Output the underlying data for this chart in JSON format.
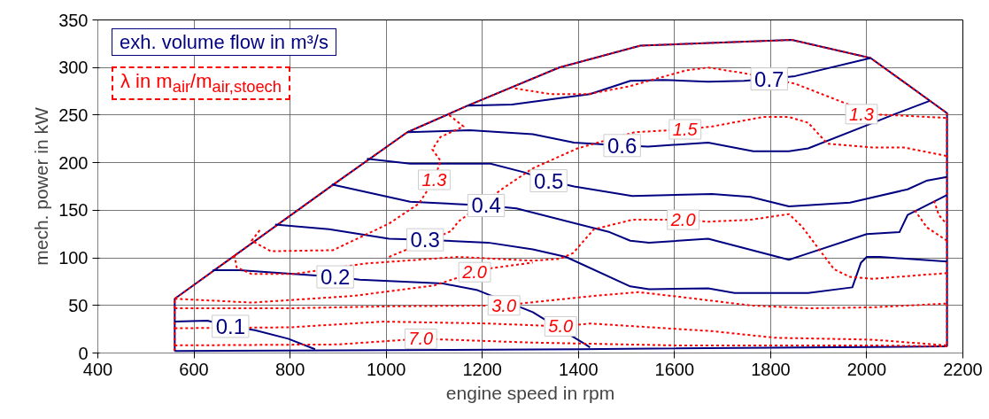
{
  "chart_data": {
    "type": "line",
    "xlabel": "engine speed in rpm",
    "ylabel": "mech. power in kW",
    "xlim": [
      400,
      2200
    ],
    "ylim": [
      0,
      350
    ],
    "xticks": [
      400,
      600,
      800,
      1000,
      1200,
      1400,
      1600,
      1800,
      2000,
      2200
    ],
    "yticks": [
      0,
      50,
      100,
      150,
      200,
      250,
      300,
      350
    ],
    "grid": true,
    "legend": "top left",
    "annotations": [
      {
        "text": "0.7",
        "x": 1797,
        "y": 288
      },
      {
        "text": "0.6",
        "x": 1491,
        "y": 218
      },
      {
        "text": "0.5",
        "x": 1338,
        "y": 181
      },
      {
        "text": "0.4",
        "x": 1208,
        "y": 155
      },
      {
        "text": "0.3",
        "x": 1081,
        "y": 119
      },
      {
        "text": "0.2",
        "x": 894,
        "y": 80
      },
      {
        "text": "0.1",
        "x": 676,
        "y": 28
      },
      {
        "text": "1.3",
        "x": 1989,
        "y": 251
      },
      {
        "text": "1.3",
        "x": 1100,
        "y": 182
      },
      {
        "text": "1.5",
        "x": 1622,
        "y": 235
      },
      {
        "text": "2.0",
        "x": 1618,
        "y": 140
      },
      {
        "text": "2.0",
        "x": 1184,
        "y": 85
      },
      {
        "text": "3.0",
        "x": 1245,
        "y": 50
      },
      {
        "text": "5.0",
        "x": 1363,
        "y": 28
      },
      {
        "text": "7.0",
        "x": 1072,
        "y": 15
      }
    ],
    "series": [
      {
        "name": "exh. volume flow in m³/s",
        "color": "#000080",
        "line_style": "solid",
        "x": [
          560,
          560,
          890,
          1044,
          1170,
          1360,
          1529,
          1844,
          2008,
          2167,
          2167
        ],
        "values": [
          2,
          57,
          177,
          232,
          260,
          300,
          323,
          329,
          310,
          252,
          7
        ]
      },
      {
        "name": "λ in m$_{air}$/m$_{air,stoech}$",
        "color": "#ff0000",
        "line_style": "dashed",
        "x": [
          560,
          560,
          890,
          1044,
          1170,
          1360,
          1529,
          1844,
          2008,
          2167,
          2167
        ],
        "values": [
          2,
          57,
          177,
          232,
          260,
          300,
          323,
          329,
          310,
          252,
          7
        ]
      },
      {
        "color": "#000080",
        "line_style": "solid",
        "x": [
          560,
          1400,
          2167
        ],
        "values": [
          2,
          4,
          7
        ]
      },
      {
        "color": "#000080",
        "line_style": "solid",
        "x": [
          1170,
          1262,
          1424,
          1508,
          1577,
          1670,
          1745,
          1797,
          1851,
          2008
        ],
        "values": [
          260,
          261,
          272,
          286,
          287,
          285,
          286,
          288,
          291,
          310
        ]
      },
      {
        "color": "#000080",
        "line_style": "solid",
        "x": [
          1044,
          1174,
          1305,
          1391,
          1491,
          1545,
          1670,
          1764,
          1838,
          1878,
          2004,
          2058,
          2131
        ],
        "values": [
          232,
          234,
          230,
          221,
          218,
          217,
          221,
          212,
          212,
          215,
          240,
          251,
          265
        ]
      },
      {
        "color": "#000080",
        "line_style": "solid",
        "x": [
          960,
          1050,
          1217,
          1286,
          1338,
          1391,
          1512,
          1678,
          1758,
          1838,
          1965,
          2085,
          2124,
          2167
        ],
        "values": [
          204,
          199,
          199,
          190,
          181,
          175,
          165,
          167,
          164,
          154,
          158,
          172,
          181,
          185
        ]
      },
      {
        "color": "#000080",
        "line_style": "solid",
        "x": [
          887,
          1050,
          1208,
          1271,
          1465,
          1508,
          1547,
          1670,
          1838,
          1868,
          2000,
          2068,
          2085,
          2167
        ],
        "values": [
          177,
          159,
          155,
          152,
          127,
          118,
          116,
          120,
          98,
          103,
          125,
          127,
          145,
          166
        ]
      },
      {
        "color": "#000080",
        "line_style": "solid",
        "x": [
          769,
          881,
          1006,
          1081,
          1212,
          1305,
          1374,
          1508,
          1547,
          1670,
          1725,
          1878,
          1970,
          1988,
          2000,
          2027,
          2167
        ],
        "values": [
          135,
          130,
          120,
          119,
          116,
          109,
          101,
          70,
          67,
          68,
          63,
          63,
          69,
          95,
          101,
          101,
          96
        ]
      },
      {
        "color": "#000080",
        "line_style": "solid",
        "x": [
          639,
          695,
          807,
          894,
          945,
          1118,
          1190,
          1305,
          1415,
          1424
        ],
        "values": [
          87,
          87,
          83,
          80,
          77,
          73,
          66,
          43,
          9,
          6
        ]
      },
      {
        "color": "#000080",
        "line_style": "solid",
        "x": [
          560,
          628,
          676,
          727,
          796,
          852
        ],
        "values": [
          33,
          34,
          28,
          24,
          15,
          4
        ]
      },
      {
        "color": "#ff0000",
        "line_style": "dashed",
        "x": [
          1268,
          1344,
          1419,
          1504,
          1624,
          1670,
          1745,
          1851,
          1978,
          1989,
          2052,
          2167
        ],
        "values": [
          278,
          272,
          272,
          280,
          297,
          300,
          294,
          283,
          258,
          251,
          250,
          247
        ]
      },
      {
        "color": "#ff0000",
        "line_style": "dashed",
        "x": [
          1131,
          1161,
          1113,
          1096,
          1113,
          1100,
          1068,
          1006,
          889,
          760,
          720,
          740
        ],
        "values": [
          250,
          238,
          227,
          214,
          202,
          182,
          157,
          136,
          108,
          107,
          118,
          131
        ]
      },
      {
        "color": "#ff0000",
        "line_style": "dashed",
        "x": [
          1006,
          1135,
          1150,
          1243,
          1305,
          1398,
          1517,
          1622,
          1678,
          1784,
          1838,
          1878,
          1918,
          2012,
          2077,
          2167
        ],
        "values": [
          101,
          128,
          138,
          173,
          194,
          215,
          232,
          235,
          238,
          248,
          248,
          242,
          220,
          216,
          216,
          207
        ]
      },
      {
        "color": "#ff0000",
        "line_style": "dashed",
        "x": [
          684,
          689,
          720,
          807,
          956,
          1150,
          1305,
          1361,
          1389,
          1432,
          1512,
          1618,
          1670,
          1758,
          1838,
          1865,
          1932,
          1965,
          2012,
          2167
        ],
        "values": [
          103,
          90,
          83,
          83,
          94,
          101,
          97,
          99,
          105,
          130,
          140,
          140,
          138,
          140,
          146,
          133,
          88,
          80,
          78,
          84
        ]
      },
      {
        "color": "#ff0000",
        "line_style": "dashed",
        "x": [
          560,
          721,
          932,
          1100,
          1184,
          1217,
          1305
        ],
        "values": [
          57,
          53,
          60,
          71,
          85,
          89,
          95
        ]
      },
      {
        "color": "#ff0000",
        "line_style": "dashed",
        "x": [
          560,
          800,
          1000,
          1245,
          1279,
          1432,
          1525,
          1611,
          1758,
          1878,
          2012,
          2167
        ],
        "values": [
          47,
          47,
          49,
          50,
          52,
          60,
          64,
          59,
          50,
          47,
          48,
          52
        ]
      },
      {
        "color": "#ff0000",
        "line_style": "dashed",
        "x": [
          560,
          800,
          994,
          1212,
          1363,
          1424,
          1678,
          1810,
          2012,
          2167
        ],
        "values": [
          26,
          27,
          33,
          31,
          28,
          31,
          23,
          16,
          14,
          8
        ]
      },
      {
        "color": "#ff0000",
        "line_style": "dashed",
        "x": [
          560,
          900,
          1072,
          1300,
          1600,
          2000,
          2167
        ],
        "values": [
          8,
          9,
          15,
          11,
          8,
          8,
          7
        ]
      },
      {
        "color": "#ff0000",
        "line_style": "dashed",
        "x": [
          2100,
          2125,
          2167
        ],
        "values": [
          150,
          132,
          118
        ]
      },
      {
        "color": "#ff0000",
        "line_style": "dashed",
        "x": [
          2140,
          2150,
          2167
        ],
        "values": [
          160,
          145,
          135
        ]
      }
    ]
  }
}
